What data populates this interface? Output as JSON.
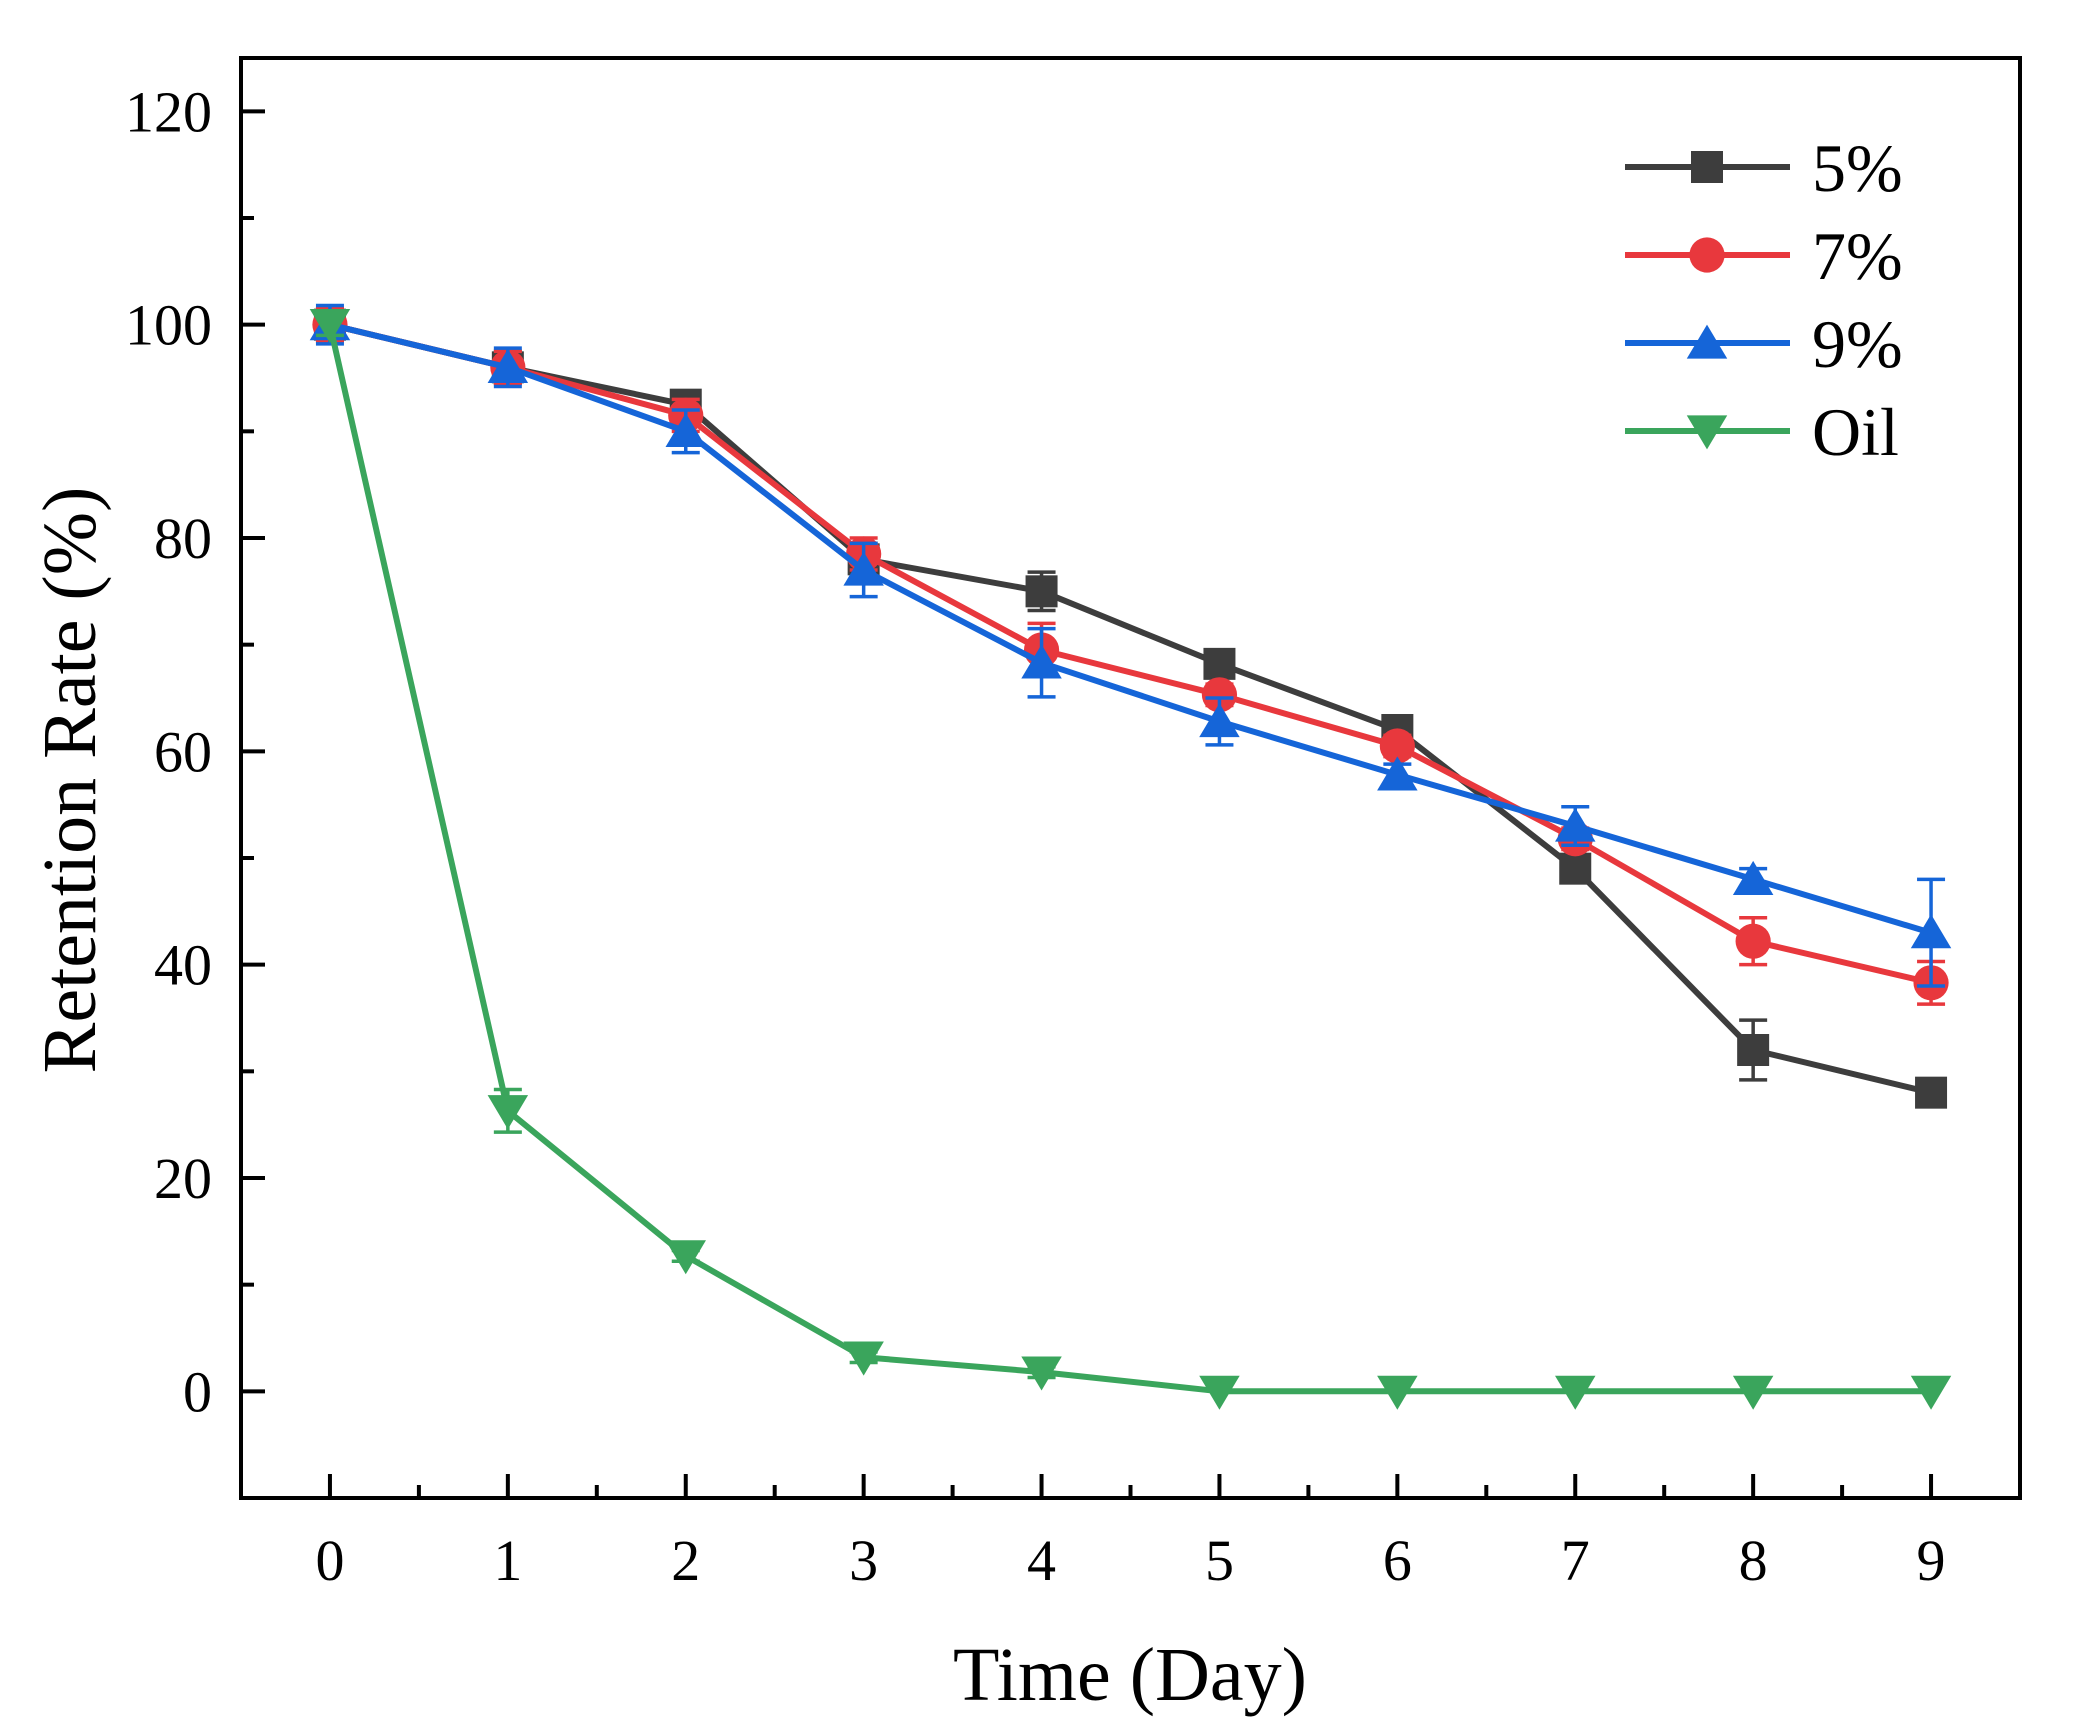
{
  "chart_data": {
    "type": "line",
    "xlabel": "Time (Day)",
    "ylabel": "Retention Rate (%)",
    "xlim": [
      -0.5,
      9.5
    ],
    "ylim": [
      -10,
      125
    ],
    "xticks": [
      "0",
      "1",
      "2",
      "3",
      "4",
      "5",
      "6",
      "7",
      "8",
      "9"
    ],
    "yticks": [
      "0",
      "20",
      "40",
      "60",
      "80",
      "100",
      "120"
    ],
    "grid": false,
    "legend_position": "top-right",
    "x": [
      0,
      1,
      2,
      3,
      4,
      5,
      6,
      7,
      8,
      9
    ],
    "series": [
      {
        "name": "5%",
        "color": "#3d3d3d",
        "marker": "square",
        "values": [
          100,
          96,
          92.5,
          78,
          75,
          68.2,
          62,
          49,
          32,
          28
        ],
        "errors": [
          1.5,
          1.5,
          1.2,
          1.5,
          1.8,
          1.0,
          1.0,
          1.0,
          2.8,
          1.0
        ]
      },
      {
        "name": "7%",
        "color": "#e8383d",
        "marker": "circle",
        "values": [
          100,
          96,
          91.5,
          78.5,
          69.5,
          65.3,
          60.5,
          51.8,
          42.2,
          38.3
        ],
        "errors": [
          1.5,
          1.5,
          1.5,
          1.5,
          2.5,
          1.0,
          1.0,
          1.0,
          2.2,
          2.0
        ]
      },
      {
        "name": "9%",
        "color": "#1565d8",
        "marker": "triangle-up",
        "values": [
          100,
          96,
          90,
          77,
          68.3,
          62.8,
          57.8,
          53,
          48,
          43
        ],
        "errors": [
          1.8,
          1.8,
          2.0,
          2.5,
          3.2,
          2.2,
          1.0,
          1.8,
          1.0,
          5.0
        ]
      },
      {
        "name": "Oil",
        "color": "#3aa55c",
        "marker": "triangle-down",
        "values": [
          100,
          26.3,
          12.7,
          3.2,
          1.8,
          0,
          0,
          0,
          0,
          0
        ],
        "errors": [
          1.0,
          2.0,
          0.5,
          0.5,
          0.5,
          0,
          0,
          0,
          0,
          0
        ]
      }
    ]
  }
}
